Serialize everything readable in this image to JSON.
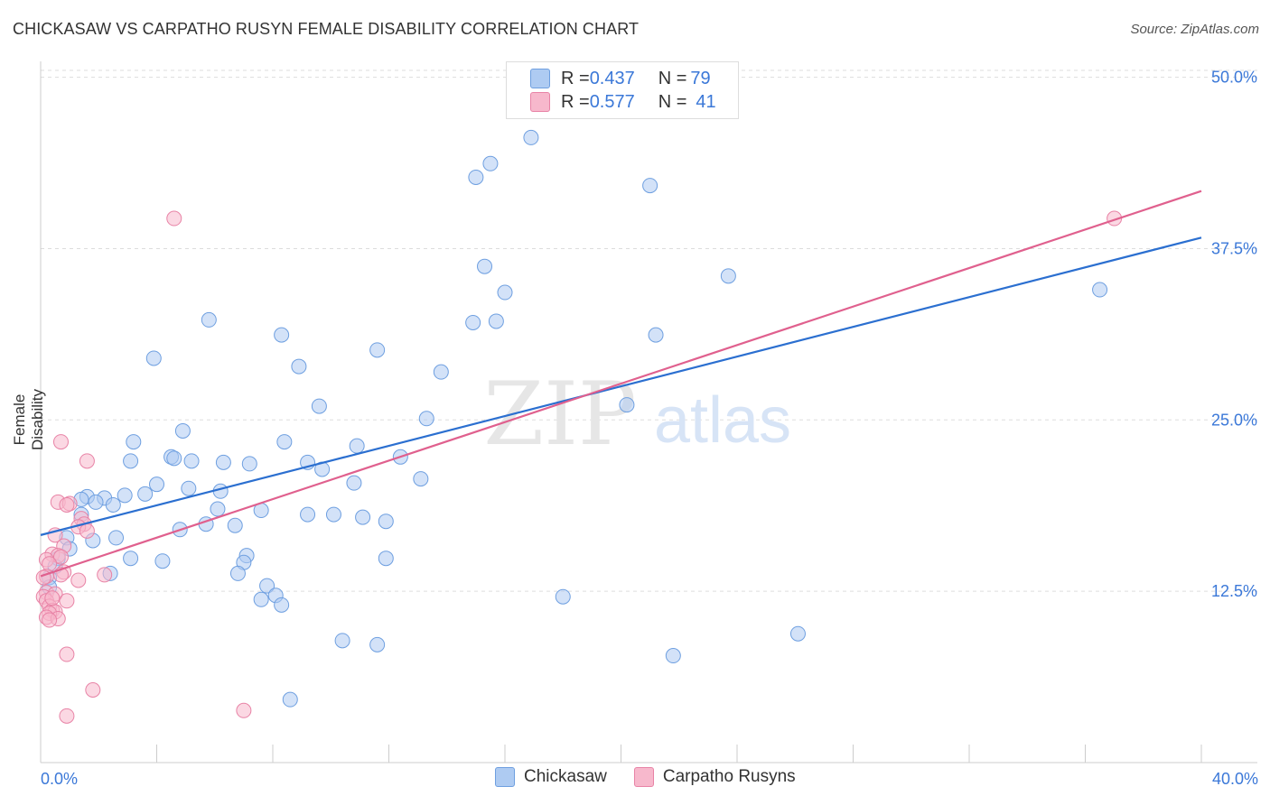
{
  "header": {
    "title": "CHICKASAW VS CARPATHO RUSYN FEMALE DISABILITY CORRELATION CHART",
    "source": "Source: ZipAtlas.com"
  },
  "legend_top": {
    "rows": [
      {
        "r_label": "R = ",
        "r_value": "0.437",
        "n_label": "N = ",
        "n_value": "79"
      },
      {
        "r_label": "R = ",
        "r_value": "0.577",
        "n_label": "N = ",
        "n_value": "41"
      }
    ]
  },
  "watermark": {
    "zip": "ZIP",
    "atlas": "atlas"
  },
  "colors": {
    "chickasaw_fill": "#aecbf2",
    "chickasaw_stroke": "#6e9fe0",
    "chickasaw_line": "#2b6fd0",
    "rusyn_fill": "#f7b8cc",
    "rusyn_stroke": "#e883a6",
    "rusyn_line": "#e0608e",
    "tick_text": "#3b78d8",
    "grid": "#dddddd"
  },
  "chart_data": {
    "type": "scatter",
    "title": "CHICKASAW VS CARPATHO RUSYN FEMALE DISABILITY CORRELATION CHART",
    "xlabel": "",
    "ylabel": "Female Disability",
    "xlim": [
      0,
      40
    ],
    "ylim": [
      0,
      50.5
    ],
    "x_tick_labels": [
      "0.0%",
      "40.0%"
    ],
    "y_ticks": [
      12.5,
      25.0,
      37.5,
      50.0
    ],
    "y_tick_labels": [
      "12.5%",
      "25.0%",
      "37.5%",
      "50.0%"
    ],
    "grid": "horizontal dashed",
    "legend_placement": "bottom-center",
    "series": [
      {
        "name": "Chickasaw",
        "R": 0.437,
        "N": 79,
        "trend": [
          [
            0,
            16.6
          ],
          [
            40,
            38.3
          ]
        ],
        "points": [
          [
            16.9,
            45.6
          ],
          [
            15.5,
            43.7
          ],
          [
            15.0,
            42.7
          ],
          [
            21.0,
            42.1
          ],
          [
            15.3,
            36.2
          ],
          [
            16.0,
            34.3
          ],
          [
            23.7,
            35.5
          ],
          [
            36.5,
            34.5
          ],
          [
            5.8,
            32.3
          ],
          [
            15.7,
            32.2
          ],
          [
            14.9,
            32.1
          ],
          [
            8.3,
            31.2
          ],
          [
            21.2,
            31.2
          ],
          [
            11.6,
            30.1
          ],
          [
            3.9,
            29.5
          ],
          [
            8.9,
            28.9
          ],
          [
            13.8,
            28.5
          ],
          [
            9.6,
            26.0
          ],
          [
            20.2,
            26.1
          ],
          [
            13.3,
            25.1
          ],
          [
            4.9,
            24.2
          ],
          [
            3.2,
            23.4
          ],
          [
            8.4,
            23.4
          ],
          [
            10.9,
            23.1
          ],
          [
            4.5,
            22.3
          ],
          [
            4.6,
            22.2
          ],
          [
            3.1,
            22.0
          ],
          [
            5.2,
            22.0
          ],
          [
            12.4,
            22.3
          ],
          [
            6.3,
            21.9
          ],
          [
            7.2,
            21.8
          ],
          [
            9.2,
            21.9
          ],
          [
            9.7,
            21.4
          ],
          [
            4.0,
            20.3
          ],
          [
            13.1,
            20.7
          ],
          [
            5.1,
            20.0
          ],
          [
            10.8,
            20.4
          ],
          [
            6.2,
            19.8
          ],
          [
            2.9,
            19.5
          ],
          [
            3.6,
            19.6
          ],
          [
            1.6,
            19.4
          ],
          [
            2.2,
            19.3
          ],
          [
            1.4,
            19.2
          ],
          [
            1.9,
            19.0
          ],
          [
            2.5,
            18.8
          ],
          [
            6.1,
            18.5
          ],
          [
            7.6,
            18.4
          ],
          [
            9.2,
            18.1
          ],
          [
            10.1,
            18.1
          ],
          [
            11.1,
            17.9
          ],
          [
            11.9,
            17.6
          ],
          [
            1.4,
            18.1
          ],
          [
            6.7,
            17.3
          ],
          [
            5.7,
            17.4
          ],
          [
            4.8,
            17.0
          ],
          [
            2.6,
            16.4
          ],
          [
            0.9,
            16.4
          ],
          [
            1.8,
            16.2
          ],
          [
            1.0,
            15.6
          ],
          [
            7.1,
            15.1
          ],
          [
            3.1,
            14.9
          ],
          [
            4.2,
            14.7
          ],
          [
            7.0,
            14.6
          ],
          [
            11.9,
            14.9
          ],
          [
            0.6,
            14.9
          ],
          [
            0.5,
            14.3
          ],
          [
            2.4,
            13.8
          ],
          [
            6.8,
            13.8
          ],
          [
            0.3,
            13.5
          ],
          [
            7.8,
            12.9
          ],
          [
            8.1,
            12.2
          ],
          [
            18.0,
            12.1
          ],
          [
            7.6,
            11.9
          ],
          [
            8.3,
            11.5
          ],
          [
            0.3,
            12.8
          ],
          [
            26.1,
            9.4
          ],
          [
            10.4,
            8.9
          ],
          [
            11.6,
            8.6
          ],
          [
            21.8,
            7.8
          ],
          [
            8.6,
            4.6
          ]
        ]
      },
      {
        "name": "Carpatho Rusyns",
        "R": 0.577,
        "N": 41,
        "trend": [
          [
            0,
            13.6
          ],
          [
            40,
            41.7
          ]
        ],
        "points": [
          [
            4.6,
            39.7
          ],
          [
            37.0,
            39.7
          ],
          [
            0.7,
            23.4
          ],
          [
            1.6,
            22.0
          ],
          [
            0.6,
            19.0
          ],
          [
            1.0,
            18.9
          ],
          [
            0.9,
            18.8
          ],
          [
            1.4,
            17.8
          ],
          [
            1.5,
            17.4
          ],
          [
            1.3,
            17.2
          ],
          [
            1.6,
            16.9
          ],
          [
            0.5,
            16.6
          ],
          [
            0.8,
            15.8
          ],
          [
            0.4,
            15.2
          ],
          [
            0.6,
            15.1
          ],
          [
            0.7,
            15.0
          ],
          [
            0.2,
            14.8
          ],
          [
            0.3,
            14.5
          ],
          [
            0.8,
            13.9
          ],
          [
            0.7,
            13.7
          ],
          [
            2.2,
            13.7
          ],
          [
            0.2,
            13.6
          ],
          [
            0.1,
            13.5
          ],
          [
            1.3,
            13.3
          ],
          [
            0.2,
            12.4
          ],
          [
            0.5,
            12.3
          ],
          [
            0.1,
            12.1
          ],
          [
            0.2,
            11.8
          ],
          [
            0.9,
            11.8
          ],
          [
            0.3,
            11.4
          ],
          [
            0.4,
            11.1
          ],
          [
            0.5,
            11.0
          ],
          [
            0.3,
            10.9
          ],
          [
            0.2,
            10.6
          ],
          [
            0.6,
            10.5
          ],
          [
            0.3,
            10.4
          ],
          [
            0.9,
            7.9
          ],
          [
            1.8,
            5.3
          ],
          [
            7.0,
            3.8
          ],
          [
            0.9,
            3.4
          ],
          [
            0.4,
            12.0
          ]
        ]
      }
    ]
  },
  "legend_bottom": {
    "items": [
      {
        "label": "Chickasaw"
      },
      {
        "label": "Carpatho Rusyns"
      }
    ]
  }
}
